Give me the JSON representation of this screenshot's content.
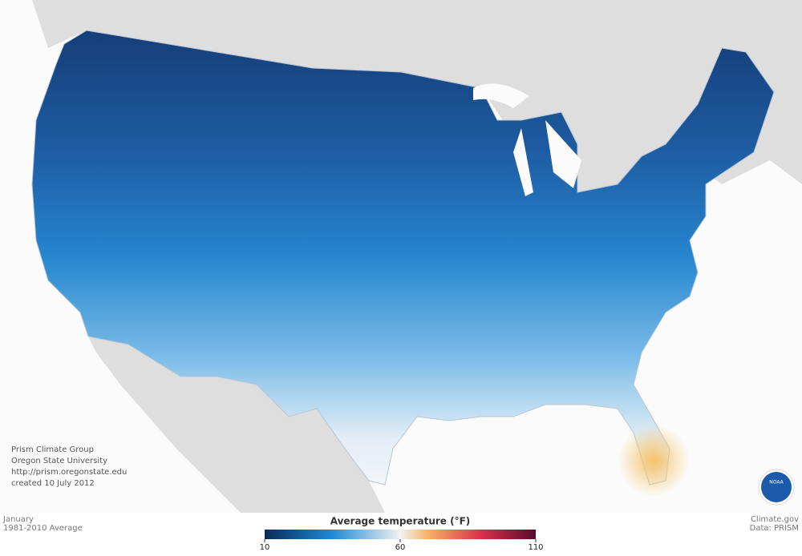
{
  "credits": [
    "Prism Climate Group",
    "Oregon State University",
    "http://prism.oregonstate.edu",
    "created 10 July 2012"
  ],
  "footer_left": {
    "month": "January",
    "period": "1981-2010 Average"
  },
  "footer_right": {
    "site": "Climate.gov",
    "source": "Data: PRISM"
  },
  "legend": {
    "title": "Average temperature (°F)",
    "range": [
      10,
      110
    ],
    "ticks": [
      10,
      60,
      110
    ]
  },
  "logo": "NOAA"
}
